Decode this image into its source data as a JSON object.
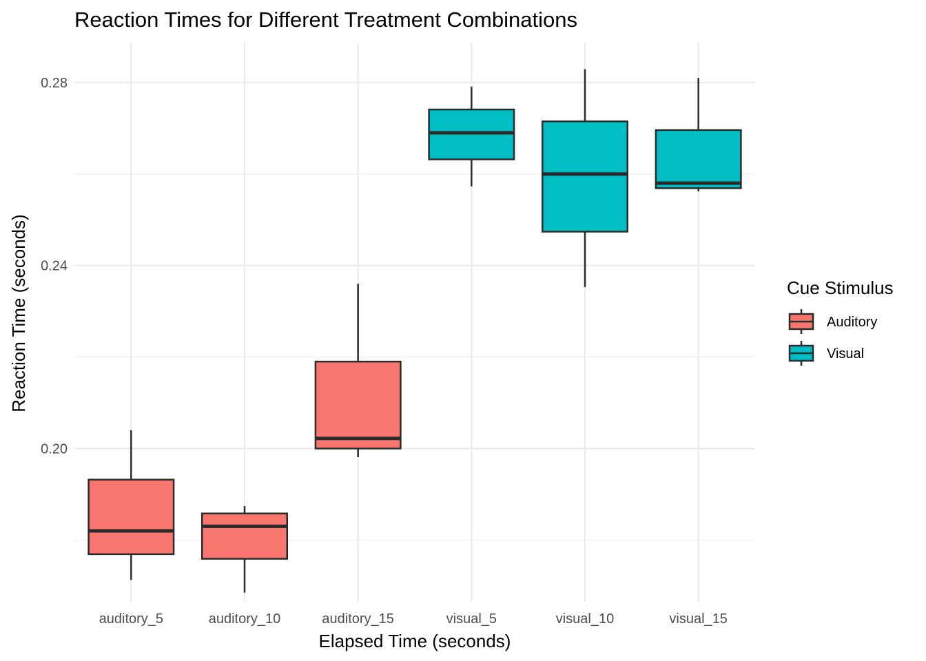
{
  "chart_data": {
    "type": "box",
    "title": "Reaction Times for Different Treatment Combinations",
    "xlabel": "Elapsed Time (seconds)",
    "ylabel": "Reaction Time (seconds)",
    "categories": [
      "auditory_5",
      "auditory_10",
      "auditory_15",
      "visual_5",
      "visual_10",
      "visual_15"
    ],
    "ylim": [
      0.1665,
      0.2887
    ],
    "yticks": [
      0.2,
      0.24,
      0.28
    ],
    "ytick_labels": [
      "0.20",
      "0.24",
      "0.28"
    ],
    "grid": true,
    "legend": {
      "title": "Cue Stimulus",
      "position": "right",
      "entries": [
        {
          "name": "Auditory",
          "color": "#F8766D"
        },
        {
          "name": "Visual",
          "color": "#00BFC4"
        }
      ]
    },
    "boxes": [
      {
        "category": "auditory_5",
        "group": "Auditory",
        "min": 0.1713,
        "q1": 0.1769,
        "median": 0.182,
        "q3": 0.1932,
        "max": 0.204
      },
      {
        "category": "auditory_10",
        "group": "Auditory",
        "min": 0.1685,
        "q1": 0.1759,
        "median": 0.183,
        "q3": 0.1858,
        "max": 0.1874
      },
      {
        "category": "auditory_15",
        "group": "Auditory",
        "min": 0.1981,
        "q1": 0.2,
        "median": 0.2022,
        "q3": 0.219,
        "max": 0.236
      },
      {
        "category": "visual_5",
        "group": "Visual",
        "min": 0.2573,
        "q1": 0.2632,
        "median": 0.269,
        "q3": 0.2741,
        "max": 0.2791
      },
      {
        "category": "visual_10",
        "group": "Visual",
        "min": 0.2353,
        "q1": 0.2474,
        "median": 0.26,
        "q3": 0.2715,
        "max": 0.2829
      },
      {
        "category": "visual_15",
        "group": "Visual",
        "min": 0.2562,
        "q1": 0.2569,
        "median": 0.258,
        "q3": 0.2696,
        "max": 0.281
      }
    ]
  }
}
